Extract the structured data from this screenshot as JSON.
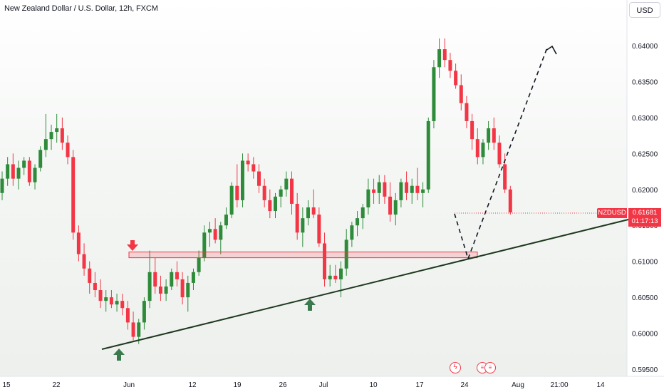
{
  "header": {
    "title": "New Zealand Dollar / U.S. Dollar, 12h, FXCM",
    "currency_button": "USD"
  },
  "price_axis": {
    "ticks": [
      "0.64000",
      "0.63500",
      "0.63000",
      "0.62500",
      "0.62000",
      "0.61500",
      "0.61000",
      "0.60500",
      "0.60000",
      "0.59500"
    ]
  },
  "time_axis": {
    "ticks": [
      "15",
      "22",
      "Jun",
      "12",
      "19",
      "26",
      "Jul",
      "10",
      "17",
      "24",
      "Aug",
      "21:00",
      "14"
    ]
  },
  "last_price": {
    "symbol": "NZDUSD",
    "price": "0.61681",
    "countdown": "01:17:13"
  },
  "events": {
    "lightning_icon": "lightning-icon",
    "flag_icons": [
      "us-flag-icon",
      "us-flag-icon"
    ]
  },
  "colors": {
    "up": "#26a69a",
    "up_candle": "#2e8b3a",
    "down": "#f23645",
    "trendline": "#1e3a1e",
    "zone": "#f23645"
  },
  "chart_data": {
    "type": "candlestick",
    "symbol": "NZDUSD",
    "timeframe": "12h",
    "ylim": [
      0.5935,
      0.6425
    ],
    "candles": [
      [
        0.6195,
        0.6225,
        0.6185,
        0.6215
      ],
      [
        0.6215,
        0.6245,
        0.6205,
        0.6235
      ],
      [
        0.6235,
        0.625,
        0.6205,
        0.6215
      ],
      [
        0.6215,
        0.624,
        0.62,
        0.623
      ],
      [
        0.623,
        0.6245,
        0.622,
        0.624
      ],
      [
        0.624,
        0.6245,
        0.6205,
        0.621
      ],
      [
        0.621,
        0.6235,
        0.62,
        0.623
      ],
      [
        0.623,
        0.626,
        0.6225,
        0.6255
      ],
      [
        0.6255,
        0.6305,
        0.6245,
        0.627
      ],
      [
        0.627,
        0.629,
        0.6255,
        0.628
      ],
      [
        0.628,
        0.6305,
        0.6265,
        0.6285
      ],
      [
        0.6285,
        0.63,
        0.6255,
        0.6265
      ],
      [
        0.6265,
        0.6275,
        0.6235,
        0.6245
      ],
      [
        0.6245,
        0.6255,
        0.613,
        0.614
      ],
      [
        0.614,
        0.615,
        0.61,
        0.611
      ],
      [
        0.611,
        0.6125,
        0.608,
        0.609
      ],
      [
        0.609,
        0.61,
        0.6055,
        0.607
      ],
      [
        0.607,
        0.6085,
        0.605,
        0.606
      ],
      [
        0.606,
        0.6075,
        0.6035,
        0.6045
      ],
      [
        0.6045,
        0.606,
        0.603,
        0.605
      ],
      [
        0.605,
        0.606,
        0.6035,
        0.604
      ],
      [
        0.604,
        0.6055,
        0.603,
        0.6045
      ],
      [
        0.6045,
        0.6055,
        0.6025,
        0.6035
      ],
      [
        0.6035,
        0.6045,
        0.6005,
        0.6015
      ],
      [
        0.6015,
        0.603,
        0.599,
        0.5995
      ],
      [
        0.5995,
        0.602,
        0.5985,
        0.6015
      ],
      [
        0.6015,
        0.605,
        0.6005,
        0.6045
      ],
      [
        0.6045,
        0.6115,
        0.6035,
        0.6085
      ],
      [
        0.6085,
        0.6105,
        0.6055,
        0.6065
      ],
      [
        0.6065,
        0.608,
        0.6045,
        0.6055
      ],
      [
        0.6055,
        0.6075,
        0.6045,
        0.6065
      ],
      [
        0.6065,
        0.609,
        0.606,
        0.6085
      ],
      [
        0.6085,
        0.61,
        0.6065,
        0.6075
      ],
      [
        0.6075,
        0.6085,
        0.604,
        0.605
      ],
      [
        0.605,
        0.608,
        0.603,
        0.607
      ],
      [
        0.607,
        0.609,
        0.606,
        0.6085
      ],
      [
        0.6085,
        0.6115,
        0.608,
        0.6105
      ],
      [
        0.6105,
        0.615,
        0.61,
        0.614
      ],
      [
        0.614,
        0.6155,
        0.612,
        0.6145
      ],
      [
        0.6145,
        0.616,
        0.6125,
        0.613
      ],
      [
        0.613,
        0.6155,
        0.611,
        0.615
      ],
      [
        0.615,
        0.6175,
        0.6145,
        0.6165
      ],
      [
        0.6165,
        0.621,
        0.616,
        0.6205
      ],
      [
        0.6205,
        0.6235,
        0.6175,
        0.6185
      ],
      [
        0.6185,
        0.625,
        0.6175,
        0.624
      ],
      [
        0.624,
        0.625,
        0.6225,
        0.6235
      ],
      [
        0.6235,
        0.6245,
        0.6215,
        0.6225
      ],
      [
        0.6225,
        0.6235,
        0.6195,
        0.6205
      ],
      [
        0.6205,
        0.6215,
        0.6175,
        0.6185
      ],
      [
        0.6185,
        0.62,
        0.616,
        0.617
      ],
      [
        0.617,
        0.6195,
        0.616,
        0.619
      ],
      [
        0.619,
        0.6205,
        0.6175,
        0.62
      ],
      [
        0.62,
        0.6225,
        0.619,
        0.6215
      ],
      [
        0.6215,
        0.6225,
        0.6165,
        0.618
      ],
      [
        0.618,
        0.6195,
        0.613,
        0.614
      ],
      [
        0.614,
        0.6175,
        0.612,
        0.616
      ],
      [
        0.616,
        0.6185,
        0.615,
        0.6175
      ],
      [
        0.6175,
        0.62,
        0.616,
        0.6165
      ],
      [
        0.6165,
        0.6175,
        0.612,
        0.6125
      ],
      [
        0.6125,
        0.614,
        0.6065,
        0.6075
      ],
      [
        0.6075,
        0.6095,
        0.6065,
        0.608
      ],
      [
        0.608,
        0.6095,
        0.607,
        0.6075
      ],
      [
        0.6075,
        0.61,
        0.605,
        0.609
      ],
      [
        0.609,
        0.6145,
        0.608,
        0.613
      ],
      [
        0.613,
        0.6155,
        0.612,
        0.615
      ],
      [
        0.615,
        0.617,
        0.6135,
        0.616
      ],
      [
        0.616,
        0.618,
        0.6145,
        0.6175
      ],
      [
        0.6175,
        0.6215,
        0.6165,
        0.62
      ],
      [
        0.62,
        0.6215,
        0.618,
        0.6195
      ],
      [
        0.6195,
        0.622,
        0.618,
        0.621
      ],
      [
        0.621,
        0.622,
        0.618,
        0.619
      ],
      [
        0.619,
        0.621,
        0.6155,
        0.6165
      ],
      [
        0.6165,
        0.6195,
        0.615,
        0.6185
      ],
      [
        0.6185,
        0.6215,
        0.6175,
        0.621
      ],
      [
        0.621,
        0.6225,
        0.6185,
        0.6195
      ],
      [
        0.6195,
        0.6215,
        0.618,
        0.6205
      ],
      [
        0.6205,
        0.623,
        0.6185,
        0.6195
      ],
      [
        0.6195,
        0.621,
        0.6175,
        0.62
      ],
      [
        0.62,
        0.63,
        0.6195,
        0.6295
      ],
      [
        0.6295,
        0.638,
        0.6285,
        0.637
      ],
      [
        0.637,
        0.641,
        0.6355,
        0.6395
      ],
      [
        0.6395,
        0.641,
        0.637,
        0.638
      ],
      [
        0.638,
        0.639,
        0.6355,
        0.6365
      ],
      [
        0.6365,
        0.6375,
        0.634,
        0.6345
      ],
      [
        0.6345,
        0.636,
        0.631,
        0.632
      ],
      [
        0.632,
        0.633,
        0.6285,
        0.6295
      ],
      [
        0.6295,
        0.6305,
        0.6255,
        0.627
      ],
      [
        0.627,
        0.6285,
        0.6235,
        0.6245
      ],
      [
        0.6245,
        0.627,
        0.6235,
        0.6265
      ],
      [
        0.6265,
        0.6295,
        0.6255,
        0.6285
      ],
      [
        0.6285,
        0.63,
        0.6255,
        0.6265
      ],
      [
        0.6265,
        0.6275,
        0.623,
        0.6235
      ],
      [
        0.6235,
        0.625,
        0.6195,
        0.62
      ],
      [
        0.62,
        0.6205,
        0.6165,
        0.6168
      ]
    ],
    "support_zone": [
      0.6105,
      0.6113
    ],
    "trendline": "rising support line",
    "projection": "dashed path down to trendline then up toward 0.6395",
    "markers": [
      "down arrow above early-June high",
      "up arrows below June and July lows"
    ]
  }
}
